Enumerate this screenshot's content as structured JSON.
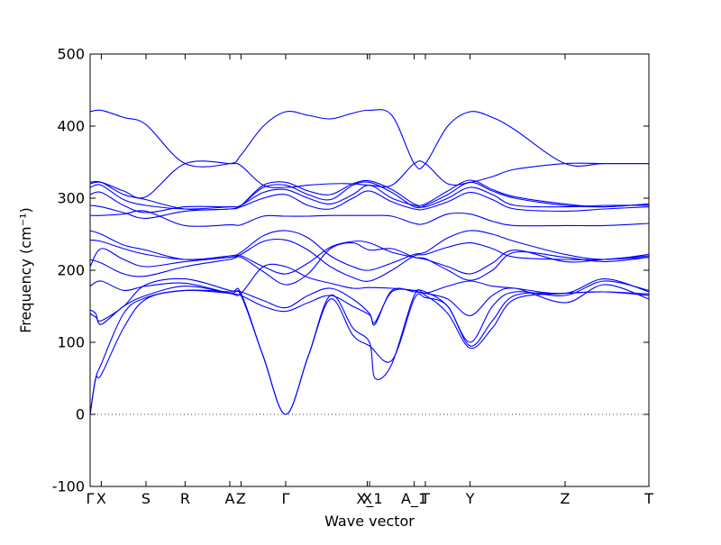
{
  "chart_data": {
    "type": "line",
    "xlabel": "Wave vector",
    "ylabel": "Frequency (cm⁻¹)",
    "ylim": [
      -100,
      500
    ],
    "y_ticks": [
      -100,
      0,
      100,
      200,
      300,
      400,
      500
    ],
    "grid": false,
    "legend": "none",
    "series_color": "#0000ff",
    "zero_line": {
      "y": 0,
      "style": "dotted"
    },
    "x_ticks": [
      {
        "label": "Γ",
        "x": 0
      },
      {
        "label": "X",
        "x": 0.1
      },
      {
        "label": "S",
        "x": 0.5
      },
      {
        "label": "R",
        "x": 0.85
      },
      {
        "label": "A",
        "x": 1.25
      },
      {
        "label": "Z",
        "x": 1.35
      },
      {
        "label": "Γ",
        "x": 1.75
      },
      {
        "label": "X",
        "x": 2.48
      },
      {
        "label": "X_1",
        "x": 2.5
      },
      {
        "label": "A_1",
        "x": 2.9
      },
      {
        "label": "T",
        "x": 3.0
      },
      {
        "label": "Y",
        "x": 3.4
      },
      {
        "label": "Z",
        "x": 4.25
      },
      {
        "label": "T",
        "x": 5.0
      }
    ],
    "series": [
      {
        "x": [
          0,
          0.05,
          0.1,
          0.3,
          0.5,
          0.85,
          1.25,
          1.35,
          1.55,
          1.75,
          1.95,
          2.15,
          2.35,
          2.5,
          2.7,
          2.9,
          3.0,
          3.2,
          3.4,
          3.6,
          3.8,
          4.25,
          4.6,
          5.0
        ],
        "values": [
          0,
          50,
          70,
          140,
          162,
          172,
          168,
          165,
          80,
          0,
          80,
          160,
          110,
          95,
          75,
          160,
          162,
          150,
          95,
          130,
          165,
          168,
          170,
          165
        ]
      },
      {
        "x": [
          0,
          0.05,
          0.1,
          0.3,
          0.5,
          0.85,
          1.25,
          1.35,
          1.55,
          1.75,
          1.95,
          2.15,
          2.35,
          2.5,
          2.55,
          2.7,
          2.9,
          3.0,
          3.2,
          3.4,
          3.6,
          3.8,
          4.25,
          4.6,
          5.0
        ],
        "values": [
          0,
          50,
          55,
          120,
          160,
          172,
          170,
          168,
          80,
          0,
          80,
          165,
          120,
          100,
          50,
          70,
          165,
          165,
          140,
          92,
          120,
          160,
          168,
          170,
          167
        ]
      },
      {
        "x": [
          0,
          0.05,
          0.1,
          0.3,
          0.5,
          0.85,
          1.25,
          1.35,
          1.55,
          1.75,
          1.95,
          2.15,
          2.35,
          2.5,
          2.55,
          2.7,
          2.9,
          3.0,
          3.2,
          3.4,
          3.6,
          3.8,
          4.25,
          4.6,
          5.0
        ],
        "values": [
          145,
          140,
          125,
          150,
          165,
          178,
          168,
          165,
          150,
          143,
          155,
          165,
          150,
          138,
          128,
          170,
          172,
          170,
          150,
          100,
          150,
          170,
          165,
          185,
          172
        ]
      },
      {
        "x": [
          0,
          0.05,
          0.1,
          0.3,
          0.5,
          0.85,
          1.25,
          1.35,
          1.55,
          1.75,
          1.95,
          2.15,
          2.35,
          2.5,
          2.55,
          2.7,
          2.9,
          3.0,
          3.2,
          3.4,
          3.6,
          3.8,
          4.25,
          4.6,
          5.0
        ],
        "values": [
          140,
          135,
          130,
          150,
          180,
          188,
          172,
          170,
          158,
          148,
          165,
          175,
          160,
          140,
          125,
          172,
          170,
          168,
          160,
          137,
          165,
          175,
          155,
          180,
          160
        ]
      },
      {
        "x": [
          0,
          0.1,
          0.3,
          0.5,
          0.85,
          1.25,
          1.35,
          1.55,
          1.75,
          1.95,
          2.15,
          2.35,
          2.5,
          2.7,
          2.9,
          3.0,
          3.2,
          3.4,
          3.6,
          3.8,
          4.25,
          4.6,
          5.0
        ],
        "values": [
          178,
          185,
          172,
          178,
          182,
          168,
          168,
          205,
          205,
          190,
          182,
          175,
          176,
          175,
          172,
          168,
          178,
          185,
          178,
          175,
          168,
          188,
          170
        ]
      },
      {
        "x": [
          0,
          0.1,
          0.3,
          0.5,
          0.85,
          1.25,
          1.35,
          1.55,
          1.75,
          1.95,
          2.15,
          2.35,
          2.5,
          2.7,
          2.9,
          3.0,
          3.2,
          3.4,
          3.6,
          3.8,
          4.25,
          4.6,
          5.0
        ],
        "values": [
          205,
          230,
          215,
          205,
          212,
          218,
          220,
          205,
          195,
          210,
          232,
          240,
          238,
          225,
          218,
          215,
          205,
          195,
          210,
          228,
          212,
          215,
          220
        ]
      },
      {
        "x": [
          0,
          0.1,
          0.3,
          0.5,
          0.85,
          1.25,
          1.35,
          1.55,
          1.75,
          1.95,
          2.15,
          2.35,
          2.5,
          2.7,
          2.9,
          3.0,
          3.2,
          3.4,
          3.6,
          3.8,
          4.25,
          4.6,
          5.0
        ],
        "values": [
          215,
          210,
          195,
          192,
          205,
          215,
          218,
          198,
          180,
          195,
          230,
          238,
          228,
          230,
          218,
          216,
          200,
          186,
          200,
          225,
          218,
          212,
          218
        ]
      },
      {
        "x": [
          0,
          0.1,
          0.3,
          0.5,
          0.85,
          1.25,
          1.35,
          1.55,
          1.75,
          1.95,
          2.15,
          2.35,
          2.5,
          2.7,
          2.9,
          3.0,
          3.2,
          3.4,
          3.6,
          3.8,
          4.25,
          4.6,
          5.0
        ],
        "values": [
          242,
          240,
          230,
          222,
          215,
          218,
          222,
          240,
          242,
          228,
          205,
          190,
          185,
          200,
          220,
          222,
          232,
          238,
          230,
          218,
          215,
          215,
          218
        ]
      },
      {
        "x": [
          0,
          0.1,
          0.3,
          0.5,
          0.85,
          1.25,
          1.35,
          1.55,
          1.75,
          1.95,
          2.15,
          2.35,
          2.5,
          2.7,
          2.9,
          3.0,
          3.2,
          3.4,
          3.6,
          3.8,
          4.25,
          4.6,
          5.0
        ],
        "values": [
          255,
          250,
          235,
          228,
          215,
          220,
          225,
          248,
          255,
          245,
          220,
          205,
          200,
          210,
          222,
          225,
          245,
          255,
          250,
          240,
          222,
          215,
          222
        ]
      },
      {
        "x": [
          0,
          0.1,
          0.3,
          0.5,
          0.85,
          1.25,
          1.35,
          1.55,
          1.75,
          1.95,
          2.15,
          2.35,
          2.5,
          2.7,
          2.9,
          3.0,
          3.2,
          3.4,
          3.6,
          3.8,
          4.25,
          4.6,
          5.0
        ],
        "values": [
          276,
          276,
          278,
          282,
          262,
          263,
          263,
          275,
          275,
          275,
          276,
          276,
          276,
          275,
          265,
          265,
          278,
          278,
          268,
          262,
          262,
          262,
          265
        ]
      },
      {
        "x": [
          0,
          0.1,
          0.3,
          0.5,
          0.85,
          1.25,
          1.35,
          1.55,
          1.75,
          1.95,
          2.15,
          2.35,
          2.5,
          2.7,
          2.9,
          3.0,
          3.2,
          3.4,
          3.6,
          3.8,
          4.25,
          4.6,
          5.0
        ],
        "values": [
          290,
          288,
          280,
          272,
          282,
          285,
          288,
          300,
          305,
          290,
          285,
          300,
          310,
          295,
          285,
          285,
          295,
          308,
          298,
          285,
          282,
          285,
          288
        ]
      },
      {
        "x": [
          0,
          0.1,
          0.3,
          0.5,
          0.85,
          1.25,
          1.35,
          1.55,
          1.75,
          1.95,
          2.15,
          2.35,
          2.5,
          2.7,
          2.9,
          3.0,
          3.2,
          3.4,
          3.6,
          3.8,
          4.25,
          4.6,
          5.0
        ],
        "values": [
          305,
          308,
          290,
          280,
          288,
          288,
          290,
          308,
          312,
          300,
          292,
          305,
          318,
          300,
          290,
          288,
          300,
          315,
          305,
          290,
          288,
          290,
          290
        ]
      },
      {
        "x": [
          0,
          0.1,
          0.3,
          0.5,
          0.85,
          1.25,
          1.35,
          1.55,
          1.75,
          1.95,
          2.15,
          2.35,
          2.5,
          2.7,
          2.9,
          3.0,
          3.2,
          3.4,
          3.6,
          3.8,
          4.25,
          4.6,
          5.0
        ],
        "values": [
          315,
          318,
          298,
          290,
          285,
          288,
          290,
          315,
          318,
          305,
          298,
          318,
          322,
          308,
          288,
          290,
          305,
          322,
          310,
          300,
          290,
          288,
          292
        ]
      },
      {
        "x": [
          0,
          0.1,
          0.3,
          0.5,
          0.85,
          1.25,
          1.35,
          1.55,
          1.75,
          1.95,
          2.15,
          2.35,
          2.5,
          2.7,
          2.9,
          3.0,
          3.2,
          3.4,
          3.6,
          3.8,
          4.25,
          4.6,
          5.0
        ],
        "values": [
          322,
          322,
          305,
          298,
          285,
          285,
          290,
          318,
          322,
          310,
          305,
          320,
          324,
          312,
          292,
          292,
          310,
          325,
          312,
          302,
          292,
          288,
          292
        ]
      },
      {
        "x": [
          0,
          0.1,
          0.3,
          0.5,
          0.85,
          1.25,
          1.35,
          1.55,
          1.75,
          1.95,
          2.15,
          2.35,
          2.5,
          2.7,
          2.9,
          3.0,
          3.2,
          3.4,
          3.6,
          3.8,
          4.25,
          4.6,
          5.0
        ],
        "values": [
          320,
          322,
          310,
          302,
          348,
          348,
          345,
          318,
          315,
          318,
          320,
          320,
          318,
          318,
          348,
          348,
          320,
          322,
          330,
          340,
          348,
          348,
          348
        ]
      },
      {
        "x": [
          0,
          0.1,
          0.3,
          0.5,
          0.85,
          1.25,
          1.35,
          1.55,
          1.75,
          1.95,
          2.15,
          2.35,
          2.5,
          2.7,
          2.9,
          3.0,
          3.2,
          3.4,
          3.6,
          3.8,
          4.25,
          4.6,
          5.0
        ],
        "values": [
          420,
          422,
          412,
          402,
          348,
          348,
          360,
          400,
          420,
          415,
          410,
          418,
          422,
          415,
          348,
          348,
          400,
          420,
          412,
          395,
          348,
          348,
          348
        ]
      }
    ]
  }
}
